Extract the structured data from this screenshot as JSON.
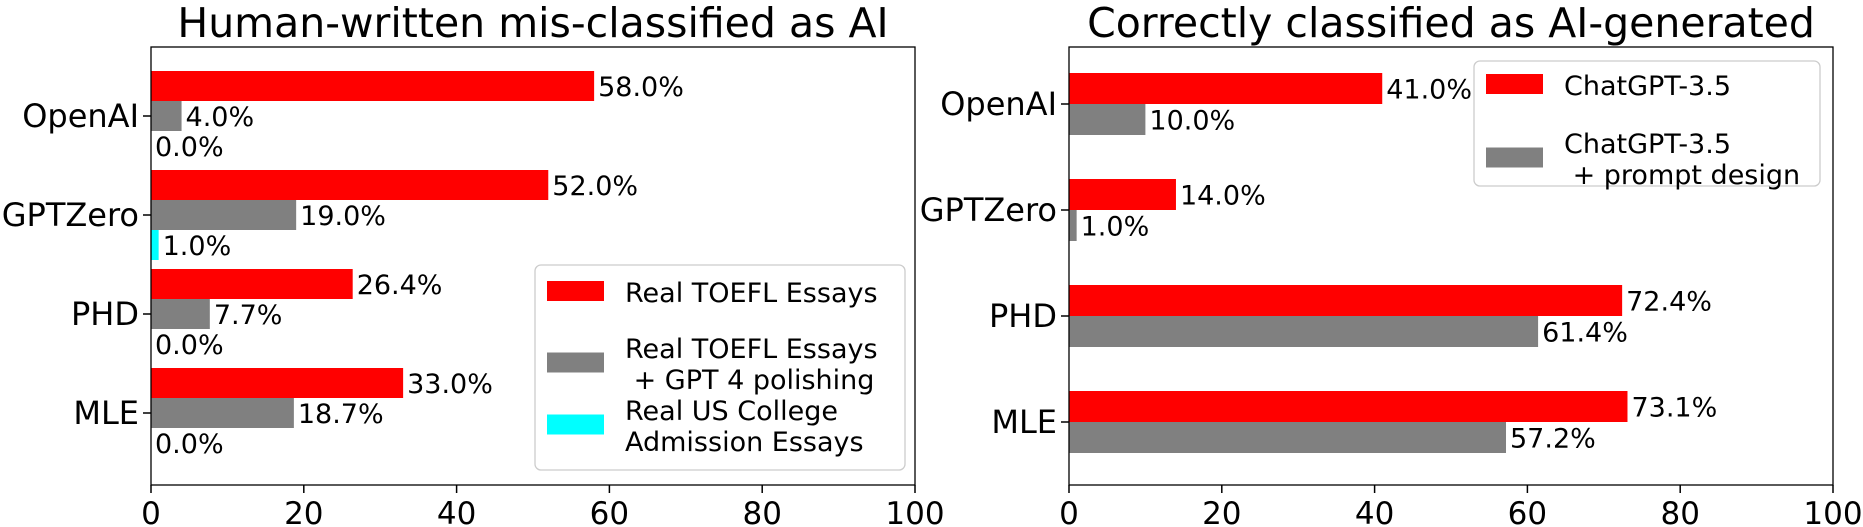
{
  "chart_data": [
    {
      "type": "bar",
      "orientation": "horizontal",
      "title": "Human-written mis-classified as AI",
      "categories": [
        "OpenAI",
        "GPTZero",
        "PHD",
        "MLE"
      ],
      "series": [
        {
          "name": "Real TOEFL Essays",
          "color": "#ff0000",
          "values": [
            58.0,
            52.0,
            26.4,
            33.0
          ],
          "labels": [
            "58.0%",
            "52.0%",
            "26.4%",
            "33.0%"
          ]
        },
        {
          "name": "Real TOEFL Essays\n + GPT 4 polishing",
          "color": "#808080",
          "values": [
            4.0,
            19.0,
            7.7,
            18.7
          ],
          "labels": [
            "4.0%",
            "19.0%",
            "7.7%",
            "18.7%"
          ]
        },
        {
          "name": "Real US College\nAdmission Essays",
          "color": "#00ffff",
          "values": [
            0.0,
            1.0,
            0.0,
            0.0
          ],
          "labels": [
            "0.0%",
            "1.0%",
            "0.0%",
            "0.0%"
          ]
        }
      ],
      "xlim": [
        0,
        100
      ],
      "xticks": [
        "0",
        "20",
        "40",
        "60",
        "80",
        "100"
      ],
      "grid": false,
      "legend_position": "lower-right"
    },
    {
      "type": "bar",
      "orientation": "horizontal",
      "title": "Correctly classified as AI-generated",
      "categories": [
        "OpenAI",
        "GPTZero",
        "PHD",
        "MLE"
      ],
      "series": [
        {
          "name": "ChatGPT-3.5",
          "color": "#ff0000",
          "values": [
            41.0,
            14.0,
            72.4,
            73.1
          ],
          "labels": [
            "41.0%",
            "14.0%",
            "72.4%",
            "73.1%"
          ]
        },
        {
          "name": "ChatGPT-3.5\n + prompt design",
          "color": "#808080",
          "values": [
            10.0,
            1.0,
            61.4,
            57.2
          ],
          "labels": [
            "10.0%",
            "1.0%",
            "61.4%",
            "57.2%"
          ]
        }
      ],
      "xlim": [
        0,
        100
      ],
      "xticks": [
        "0",
        "20",
        "40",
        "60",
        "80",
        "100"
      ],
      "grid": false,
      "legend_position": "upper-right"
    }
  ]
}
